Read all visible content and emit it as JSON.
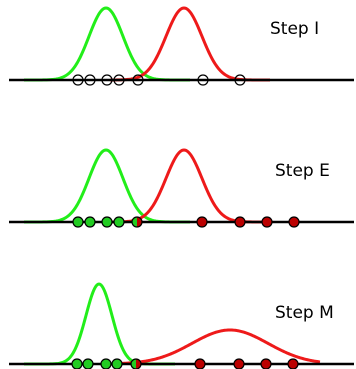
{
  "colors": {
    "green": "#22ee1a",
    "red": "#ee1a1a",
    "axis": "#000000",
    "point_stroke": "#000000",
    "point_green_fill": "#22cc22",
    "point_red_fill": "#bb0000"
  },
  "panels": [
    {
      "label": "Step I",
      "points": [
        {
          "x": 78,
          "color": "none"
        },
        {
          "x": 90,
          "color": "none"
        },
        {
          "x": 107,
          "color": "none"
        },
        {
          "x": 119,
          "color": "none"
        },
        {
          "x": 138,
          "color": "none"
        },
        {
          "x": 203,
          "color": "none"
        },
        {
          "x": 240,
          "color": "none"
        }
      ],
      "green_curve": {
        "mean": 106,
        "sd": 17,
        "amp": 72
      },
      "red_curve": {
        "mean": 184,
        "sd": 18,
        "amp": 72
      }
    },
    {
      "label": "Step E",
      "points": [
        {
          "x": 78,
          "color": "green"
        },
        {
          "x": 90,
          "color": "green"
        },
        {
          "x": 107,
          "color": "green"
        },
        {
          "x": 119,
          "color": "green"
        },
        {
          "x": 137,
          "color": "mixed"
        },
        {
          "x": 202,
          "color": "red"
        },
        {
          "x": 240,
          "color": "red"
        },
        {
          "x": 267,
          "color": "red"
        },
        {
          "x": 294,
          "color": "red"
        }
      ],
      "green_curve": {
        "mean": 106,
        "sd": 17,
        "amp": 72
      },
      "red_curve": {
        "mean": 184,
        "sd": 18,
        "amp": 72
      }
    },
    {
      "label": "Step M",
      "points": [
        {
          "x": 77,
          "color": "green"
        },
        {
          "x": 88,
          "color": "green"
        },
        {
          "x": 106,
          "color": "green"
        },
        {
          "x": 117,
          "color": "green"
        },
        {
          "x": 136,
          "color": "mixed"
        },
        {
          "x": 200,
          "color": "red"
        },
        {
          "x": 239,
          "color": "red"
        },
        {
          "x": 266,
          "color": "red"
        },
        {
          "x": 293,
          "color": "red"
        }
      ],
      "green_curve": {
        "mean": 99,
        "sd": 13,
        "amp": 80
      },
      "red_curve": {
        "mean": 230,
        "sd": 38,
        "amp": 34
      }
    }
  ]
}
